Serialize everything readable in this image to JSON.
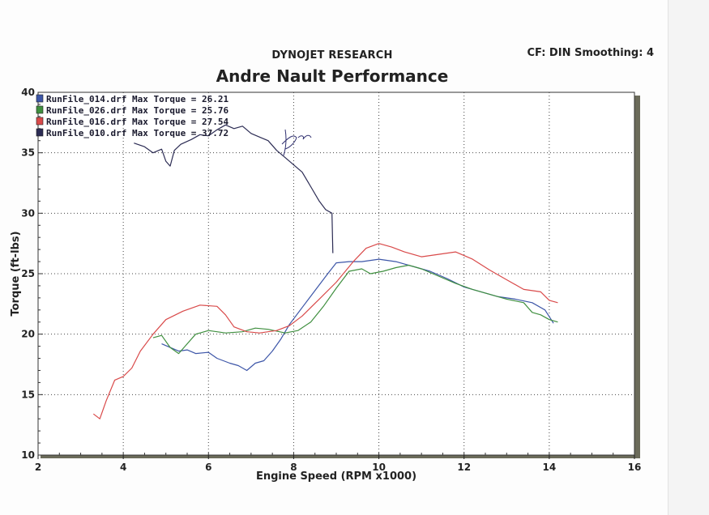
{
  "header": {
    "company": "DYNOJET RESEARCH",
    "settings": "CF: DIN  Smoothing: 4",
    "shop": "Andre Nault Performance"
  },
  "colors": {
    "plot_bg": "#ffffff",
    "grid": "#444444",
    "frame_shadow": "#6b6b5a"
  },
  "chart_data": {
    "type": "line",
    "title": "Andre Nault Performance",
    "xlabel": "Engine Speed (RPM x1000)",
    "ylabel": "Torque (ft-lbs)",
    "xlim": [
      2,
      16
    ],
    "ylim": [
      10,
      40
    ],
    "xticks": [
      2,
      4,
      6,
      8,
      10,
      12,
      14,
      16
    ],
    "yticks": [
      10,
      15,
      20,
      25,
      30,
      35,
      40
    ],
    "grid": true,
    "legend_position": "top-left",
    "series": [
      {
        "name": "RunFile_014.drf Max Torque = 26.21",
        "color": "#3d56a8",
        "points": [
          [
            4.9,
            19.2
          ],
          [
            5.1,
            18.9
          ],
          [
            5.3,
            18.6
          ],
          [
            5.5,
            18.7
          ],
          [
            5.7,
            18.4
          ],
          [
            6.0,
            18.5
          ],
          [
            6.2,
            18.0
          ],
          [
            6.5,
            17.6
          ],
          [
            6.7,
            17.4
          ],
          [
            6.9,
            17.0
          ],
          [
            7.1,
            17.6
          ],
          [
            7.3,
            17.8
          ],
          [
            7.5,
            18.6
          ],
          [
            7.7,
            19.6
          ],
          [
            7.9,
            20.8
          ],
          [
            8.2,
            22.2
          ],
          [
            8.5,
            23.6
          ],
          [
            8.8,
            25.0
          ],
          [
            9.0,
            25.9
          ],
          [
            9.3,
            26.0
          ],
          [
            9.6,
            26.0
          ],
          [
            10.0,
            26.2
          ],
          [
            10.4,
            26.0
          ],
          [
            10.8,
            25.6
          ],
          [
            11.2,
            25.2
          ],
          [
            11.6,
            24.6
          ],
          [
            12.0,
            23.9
          ],
          [
            12.4,
            23.5
          ],
          [
            12.8,
            23.1
          ],
          [
            13.2,
            22.9
          ],
          [
            13.6,
            22.6
          ],
          [
            13.9,
            22.0
          ],
          [
            14.1,
            20.9
          ]
        ]
      },
      {
        "name": "RunFile_026.drf Max Torque = 25.76",
        "color": "#3f8f3f",
        "points": [
          [
            4.7,
            19.7
          ],
          [
            4.9,
            19.9
          ],
          [
            5.1,
            18.9
          ],
          [
            5.3,
            18.4
          ],
          [
            5.5,
            19.2
          ],
          [
            5.7,
            20.0
          ],
          [
            6.0,
            20.3
          ],
          [
            6.4,
            20.1
          ],
          [
            6.8,
            20.2
          ],
          [
            7.1,
            20.5
          ],
          [
            7.4,
            20.4
          ],
          [
            7.8,
            20.1
          ],
          [
            8.1,
            20.3
          ],
          [
            8.4,
            21.0
          ],
          [
            8.7,
            22.3
          ],
          [
            9.0,
            23.8
          ],
          [
            9.3,
            25.2
          ],
          [
            9.6,
            25.4
          ],
          [
            9.8,
            25.0
          ],
          [
            10.1,
            25.2
          ],
          [
            10.4,
            25.5
          ],
          [
            10.7,
            25.7
          ],
          [
            11.0,
            25.4
          ],
          [
            11.4,
            24.8
          ],
          [
            11.8,
            24.2
          ],
          [
            12.2,
            23.7
          ],
          [
            12.6,
            23.3
          ],
          [
            13.0,
            22.9
          ],
          [
            13.4,
            22.6
          ],
          [
            13.6,
            21.8
          ],
          [
            13.8,
            21.6
          ],
          [
            14.0,
            21.2
          ],
          [
            14.2,
            21.0
          ]
        ]
      },
      {
        "name": "RunFile_016.drf Max Torque = 27.54",
        "color": "#d94a4a",
        "points": [
          [
            3.3,
            13.4
          ],
          [
            3.45,
            13.0
          ],
          [
            3.6,
            14.5
          ],
          [
            3.8,
            16.2
          ],
          [
            4.0,
            16.5
          ],
          [
            4.2,
            17.2
          ],
          [
            4.4,
            18.6
          ],
          [
            4.7,
            20.0
          ],
          [
            5.0,
            21.2
          ],
          [
            5.4,
            21.9
          ],
          [
            5.8,
            22.4
          ],
          [
            6.2,
            22.3
          ],
          [
            6.4,
            21.6
          ],
          [
            6.6,
            20.6
          ],
          [
            6.9,
            20.2
          ],
          [
            7.2,
            20.1
          ],
          [
            7.6,
            20.3
          ],
          [
            7.9,
            20.7
          ],
          [
            8.2,
            21.5
          ],
          [
            8.6,
            22.9
          ],
          [
            9.0,
            24.3
          ],
          [
            9.4,
            26.0
          ],
          [
            9.7,
            27.1
          ],
          [
            10.0,
            27.5
          ],
          [
            10.3,
            27.2
          ],
          [
            10.6,
            26.8
          ],
          [
            11.0,
            26.4
          ],
          [
            11.4,
            26.6
          ],
          [
            11.8,
            26.8
          ],
          [
            12.2,
            26.2
          ],
          [
            12.6,
            25.3
          ],
          [
            13.0,
            24.5
          ],
          [
            13.4,
            23.7
          ],
          [
            13.8,
            23.5
          ],
          [
            14.0,
            22.8
          ],
          [
            14.2,
            22.6
          ]
        ]
      },
      {
        "name": "RunFile_010.drf Max Torque = 37.72",
        "color": "#2c2c54",
        "points": [
          [
            4.25,
            35.8
          ],
          [
            4.5,
            35.5
          ],
          [
            4.7,
            35.0
          ],
          [
            4.9,
            35.3
          ],
          [
            5.0,
            34.3
          ],
          [
            5.1,
            33.9
          ],
          [
            5.2,
            35.2
          ],
          [
            5.35,
            35.7
          ],
          [
            5.6,
            36.1
          ],
          [
            5.8,
            36.5
          ],
          [
            6.0,
            36.4
          ],
          [
            6.2,
            36.9
          ],
          [
            6.4,
            37.3
          ],
          [
            6.6,
            37.0
          ],
          [
            6.8,
            37.2
          ],
          [
            7.0,
            36.6
          ],
          [
            7.2,
            36.3
          ],
          [
            7.4,
            36.0
          ],
          [
            7.6,
            35.2
          ],
          [
            7.8,
            34.6
          ],
          [
            8.0,
            34.0
          ],
          [
            8.2,
            33.4
          ],
          [
            8.4,
            32.2
          ],
          [
            8.6,
            31.0
          ],
          [
            8.75,
            30.3
          ],
          [
            8.9,
            30.0
          ],
          [
            8.92,
            26.7
          ]
        ]
      }
    ]
  }
}
